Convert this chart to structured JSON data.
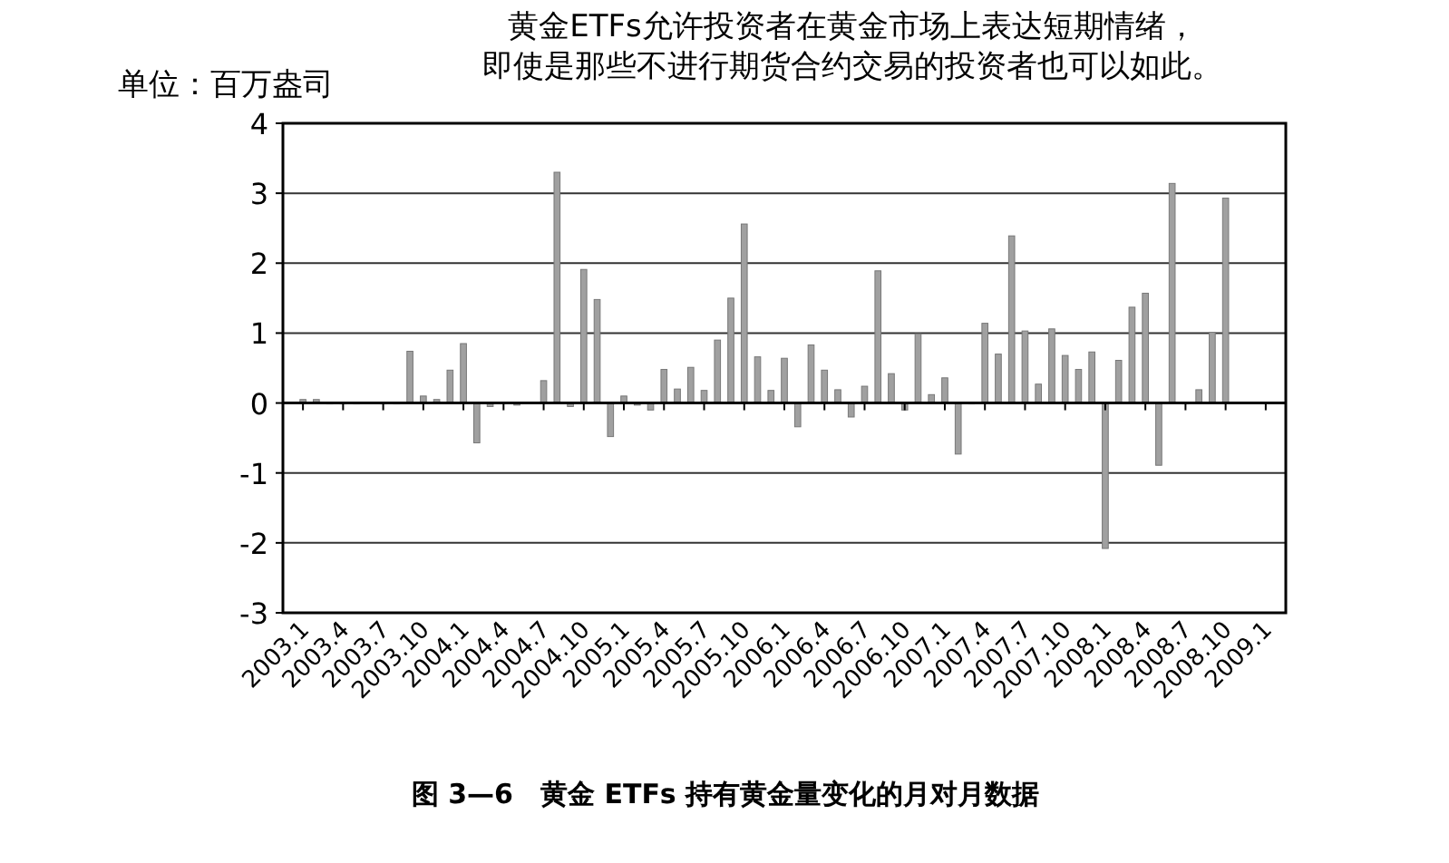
{
  "chart_data": {
    "type": "bar",
    "title": "黄金ETFs允许投资者在黄金市场上表达短期情绪，",
    "subtitle": "即使是那些不进行期货合约交易的投资者也可以如此。",
    "ylabel": "单位：百万盎司",
    "annotations": [
      "图 3—6　黄金 ETFs 持有黄金量变化的月对月数据"
    ],
    "categories": [
      "2003.1",
      null,
      null,
      "2003.4",
      null,
      null,
      "2003.7",
      null,
      null,
      "2003.10",
      null,
      null,
      "2004.1",
      null,
      null,
      "2004.4",
      null,
      null,
      "2004.7",
      null,
      null,
      "2004.10",
      null,
      null,
      "2005.1",
      null,
      null,
      "2005.4",
      null,
      null,
      "2005.7",
      null,
      null,
      "2005.10",
      null,
      null,
      "2006.1",
      null,
      null,
      "2006.4",
      null,
      null,
      "2006.7",
      null,
      null,
      "2006.10",
      null,
      null,
      "2007.1",
      null,
      null,
      "2007.4",
      null,
      null,
      "2007.7",
      null,
      null,
      "2007.10",
      null,
      null,
      "2008.1",
      null,
      null,
      "2008.4",
      null,
      null,
      "2008.7",
      null,
      null,
      "2008.10",
      null,
      null,
      "2009.1"
    ],
    "values": [
      0.05,
      0.05,
      0,
      0,
      0,
      null,
      0,
      0,
      0.74,
      0.1,
      0.05,
      0.47,
      0.85,
      -0.57,
      -0.05,
      null,
      -0.03,
      null,
      0.32,
      3.3,
      -0.05,
      1.91,
      1.48,
      -0.48,
      0.1,
      -0.03,
      -0.1,
      0.48,
      0.2,
      0.51,
      0.18,
      0.9,
      1.5,
      2.56,
      0.66,
      0.18,
      0.64,
      -0.34,
      0.83,
      0.47,
      0.19,
      -0.2,
      0.24,
      1.89,
      0.42,
      -0.1,
      0.99,
      0.12,
      0.36,
      -0.73,
      0,
      1.14,
      0.7,
      2.39,
      1.03,
      0.27,
      1.06,
      0.68,
      0.48,
      0.73,
      -2.08,
      0.61,
      1.37,
      1.57,
      -0.89,
      3.14,
      0,
      0.19,
      1.01,
      2.93,
      null,
      null,
      null
    ],
    "color": "#a0a0a0",
    "ylim": [
      -3,
      4
    ],
    "yticks": [
      -3,
      -2,
      -1,
      0,
      1,
      2,
      3,
      4
    ],
    "grid": "y"
  }
}
